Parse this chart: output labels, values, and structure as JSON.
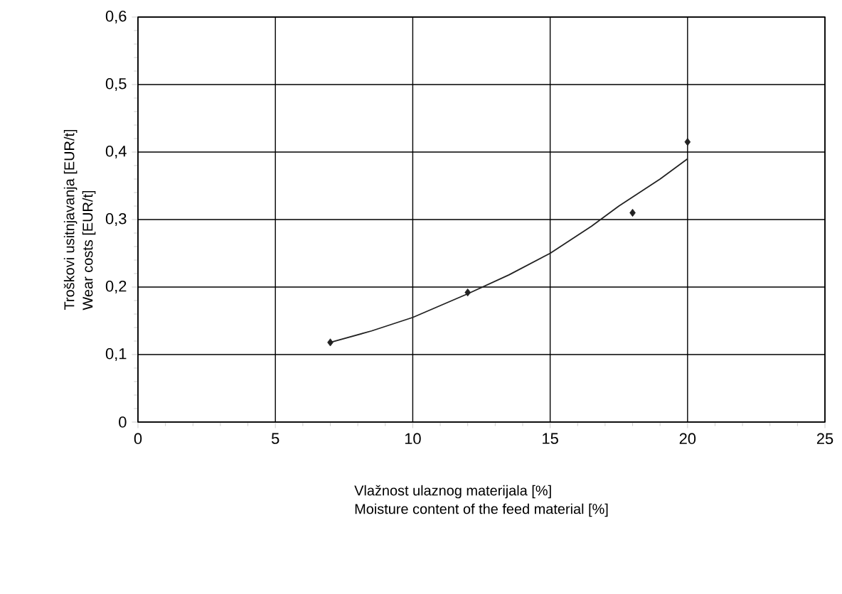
{
  "chart_data": {
    "type": "scatter",
    "xlabel": "Vlažnost ulaznog materijala [%]\nMoisture content of the feed material [%]",
    "ylabel": "Troškovi usitnjavanja [EUR/t]\nWear costs [EUR/t]",
    "series": [
      {
        "color": "#222222",
        "marker": "diamond",
        "x": [
          7,
          12,
          18,
          20
        ],
        "values": [
          0.118,
          0.192,
          0.31,
          0.415
        ]
      },
      {
        "type": "line",
        "color": "#222222",
        "marker": "none",
        "x": [
          7,
          8.5,
          10,
          12,
          13.5,
          15,
          16.5,
          17.5,
          19,
          20
        ],
        "values": [
          0.118,
          0.135,
          0.155,
          0.19,
          0.218,
          0.25,
          0.29,
          0.32,
          0.36,
          0.39
        ]
      }
    ],
    "xlim": [
      0,
      25
    ],
    "xticks": [
      0,
      5,
      10,
      15,
      20,
      25
    ],
    "ylim": [
      0,
      0.6
    ],
    "yticks": [
      {
        "value": 0,
        "label": "0"
      },
      {
        "value": 0.1,
        "label": "0,1"
      },
      {
        "value": 0.2,
        "label": "0,2"
      },
      {
        "value": 0.3,
        "label": "0,3"
      },
      {
        "value": 0.4,
        "label": "0,4"
      },
      {
        "value": 0.5,
        "label": "0,5"
      },
      {
        "value": 0.6,
        "label": "0,6"
      }
    ],
    "grid": true
  }
}
